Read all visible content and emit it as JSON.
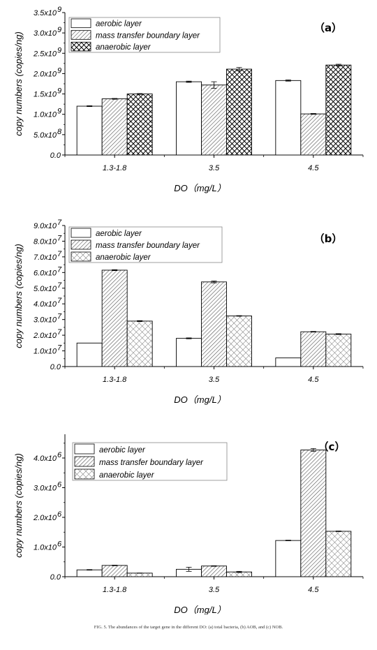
{
  "caption": "FIG. 5. The abundances of the target gene in the different DO: (a) total bacteria, (b) AOB, and (c) NOB.",
  "chart_data": [
    {
      "type": "bar",
      "panel_label": "（a）",
      "xlabel": "DO（mg/L）",
      "ylabel": "copy numbers (copies/ng)",
      "categories": [
        "1.3-1.8",
        "3.5",
        "4.5"
      ],
      "ylim": [
        0,
        3500000000
      ],
      "yticks": [
        0,
        500000000,
        1000000000,
        1500000000,
        2000000000,
        2500000000,
        3000000000,
        3500000000
      ],
      "yticklabels": [
        [
          "0.0",
          ""
        ],
        [
          "5.0x10",
          "8"
        ],
        [
          "1.0x10",
          "9"
        ],
        [
          "1.5x10",
          "9"
        ],
        [
          "2.0x10",
          "9"
        ],
        [
          "2.5x10",
          "9"
        ],
        [
          "3.0x10",
          "9"
        ],
        [
          "3.5x10",
          "9"
        ]
      ],
      "legend_position": "top-left",
      "series": [
        {
          "name": "aerobic layer",
          "pattern": "none",
          "values": [
            1200000000,
            1800000000,
            1830000000
          ],
          "errors": [
            10000000,
            15000000,
            15000000
          ]
        },
        {
          "name": "mass transfer boundary layer",
          "pattern": "hatch",
          "values": [
            1380000000,
            1720000000,
            1010000000
          ],
          "errors": [
            10000000,
            80000000,
            10000000
          ]
        },
        {
          "name": "anaerobic layer",
          "pattern": "dense-cross",
          "values": [
            1500000000,
            2110000000,
            2210000000
          ],
          "errors": [
            10000000,
            40000000,
            20000000
          ]
        }
      ]
    },
    {
      "type": "bar",
      "panel_label": "（b）",
      "xlabel": "DO（mg/L）",
      "ylabel": "copy numbers (copies/ng)",
      "categories": [
        "1.3-1.8",
        "3.5",
        "4.5"
      ],
      "ylim": [
        0,
        90000000
      ],
      "yticks": [
        0,
        10000000,
        20000000,
        30000000,
        40000000,
        50000000,
        60000000,
        70000000,
        80000000,
        90000000
      ],
      "yticklabels": [
        [
          "0.0",
          ""
        ],
        [
          "1.0x10",
          "7"
        ],
        [
          "2.0x10",
          "7"
        ],
        [
          "3.0x10",
          "7"
        ],
        [
          "4.0x10",
          "7"
        ],
        [
          "5.0x10",
          "7"
        ],
        [
          "6.0x10",
          "7"
        ],
        [
          "7.0x10",
          "7"
        ],
        [
          "8.0x10",
          "7"
        ],
        [
          "9.0x10",
          "7"
        ]
      ],
      "legend_position": "top-left",
      "series": [
        {
          "name": "aerobic layer",
          "pattern": "none",
          "values": [
            15000000,
            18000000,
            5500000
          ],
          "errors": [
            0,
            300000,
            0
          ]
        },
        {
          "name": "mass transfer boundary layer",
          "pattern": "hatch",
          "values": [
            61500000,
            54000000,
            22200000
          ],
          "errors": [
            300000,
            600000,
            200000
          ]
        },
        {
          "name": "anaerobic layer",
          "pattern": "cross",
          "values": [
            29000000,
            32300000,
            20700000
          ],
          "errors": [
            300000,
            200000,
            300000
          ]
        }
      ]
    },
    {
      "type": "bar",
      "panel_label": "（c）",
      "xlabel": "DO（mg/L）",
      "ylabel": "copy numbers (copies/ng)",
      "categories": [
        "1.3-1.8",
        "3.5",
        "4.5"
      ],
      "ylim": [
        0,
        4800000
      ],
      "yticks": [
        0,
        1000000,
        2000000,
        3000000,
        4000000
      ],
      "yticklabels": [
        [
          "0.0",
          ""
        ],
        [
          "1.0x10",
          "6"
        ],
        [
          "2.0x10",
          "6"
        ],
        [
          "3.0x10",
          "6"
        ],
        [
          "4.0x10",
          "6"
        ]
      ],
      "legend_position": "top-left",
      "series": [
        {
          "name": "aerobic layer",
          "pattern": "none",
          "values": [
            230000,
            250000,
            1220000
          ],
          "errors": [
            10000,
            70000,
            10000
          ]
        },
        {
          "name": "mass transfer boundary layer",
          "pattern": "hatch",
          "values": [
            380000,
            360000,
            4270000
          ],
          "errors": [
            10000,
            10000,
            50000
          ]
        },
        {
          "name": "anaerobic layer",
          "pattern": "cross",
          "values": [
            120000,
            160000,
            1530000
          ],
          "errors": [
            5000,
            20000,
            10000
          ]
        }
      ]
    }
  ]
}
